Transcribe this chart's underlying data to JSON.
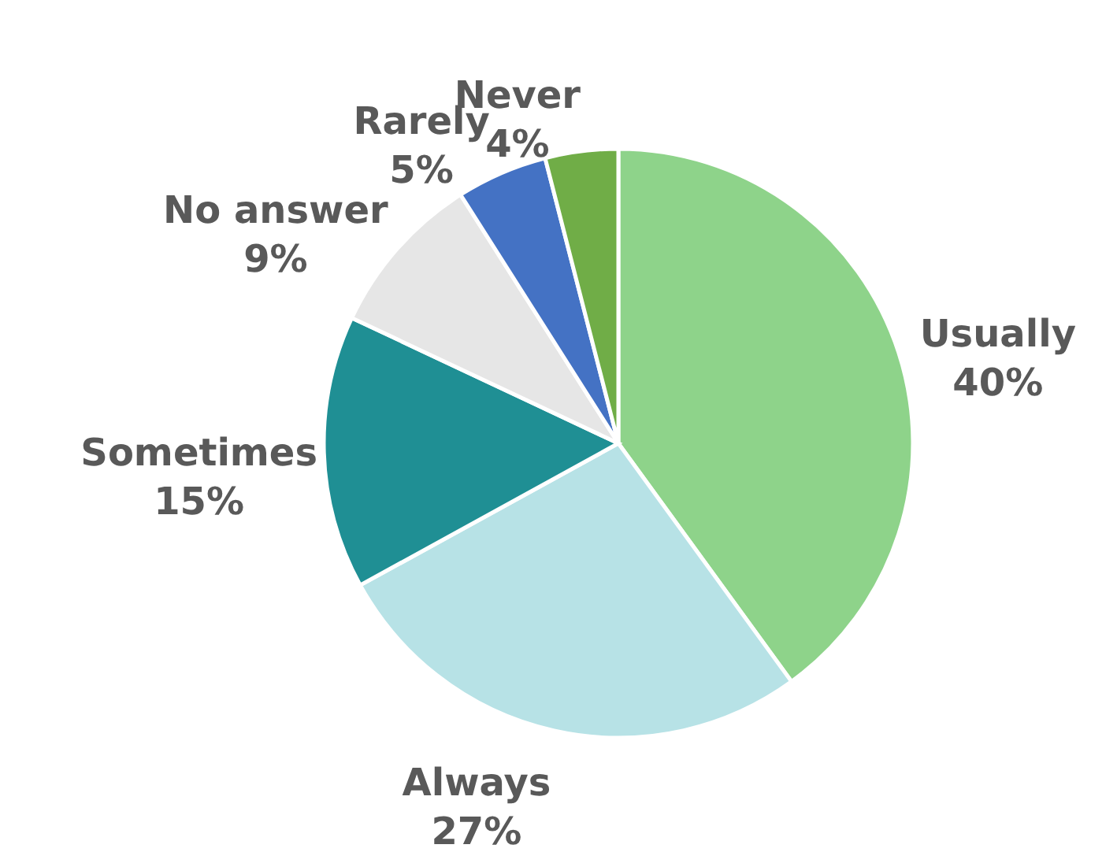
{
  "chart_data": {
    "type": "pie",
    "categories": [
      "Usually",
      "Always",
      "Sometimes",
      "No answer",
      "Rarely",
      "Never"
    ],
    "values": [
      40,
      27,
      15,
      9,
      5,
      4
    ],
    "colors": [
      "#8ed38a",
      "#b7e2e6",
      "#1f8f94",
      "#e6e6e6",
      "#4472c4",
      "#70ad47"
    ],
    "value_labels": [
      "40%",
      "27%",
      "15%",
      "9%",
      "5%",
      "4%"
    ],
    "legend": false
  }
}
